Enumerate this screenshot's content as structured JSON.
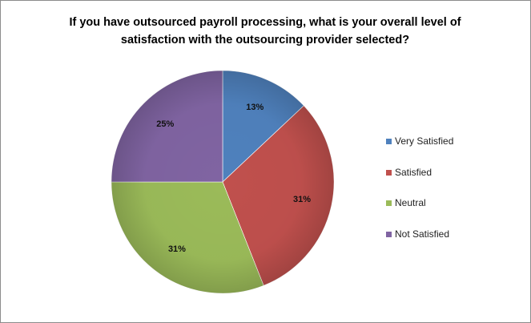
{
  "chart_data": {
    "type": "pie",
    "title_lines": [
      "If you have outsourced payroll processing, what is your overall level of",
      "satisfaction with the outsourcing provider selected?"
    ],
    "categories": [
      "Very Satisfied",
      "Satisfied",
      "Neutral",
      "Not Satisfied"
    ],
    "values": [
      13,
      31,
      31,
      25
    ],
    "data_labels": [
      "13%",
      "31%",
      "31%",
      "25%"
    ],
    "colors": [
      "#4f81bd",
      "#c0504d",
      "#9bbb59",
      "#8064a2"
    ],
    "legend_placement": "right"
  }
}
